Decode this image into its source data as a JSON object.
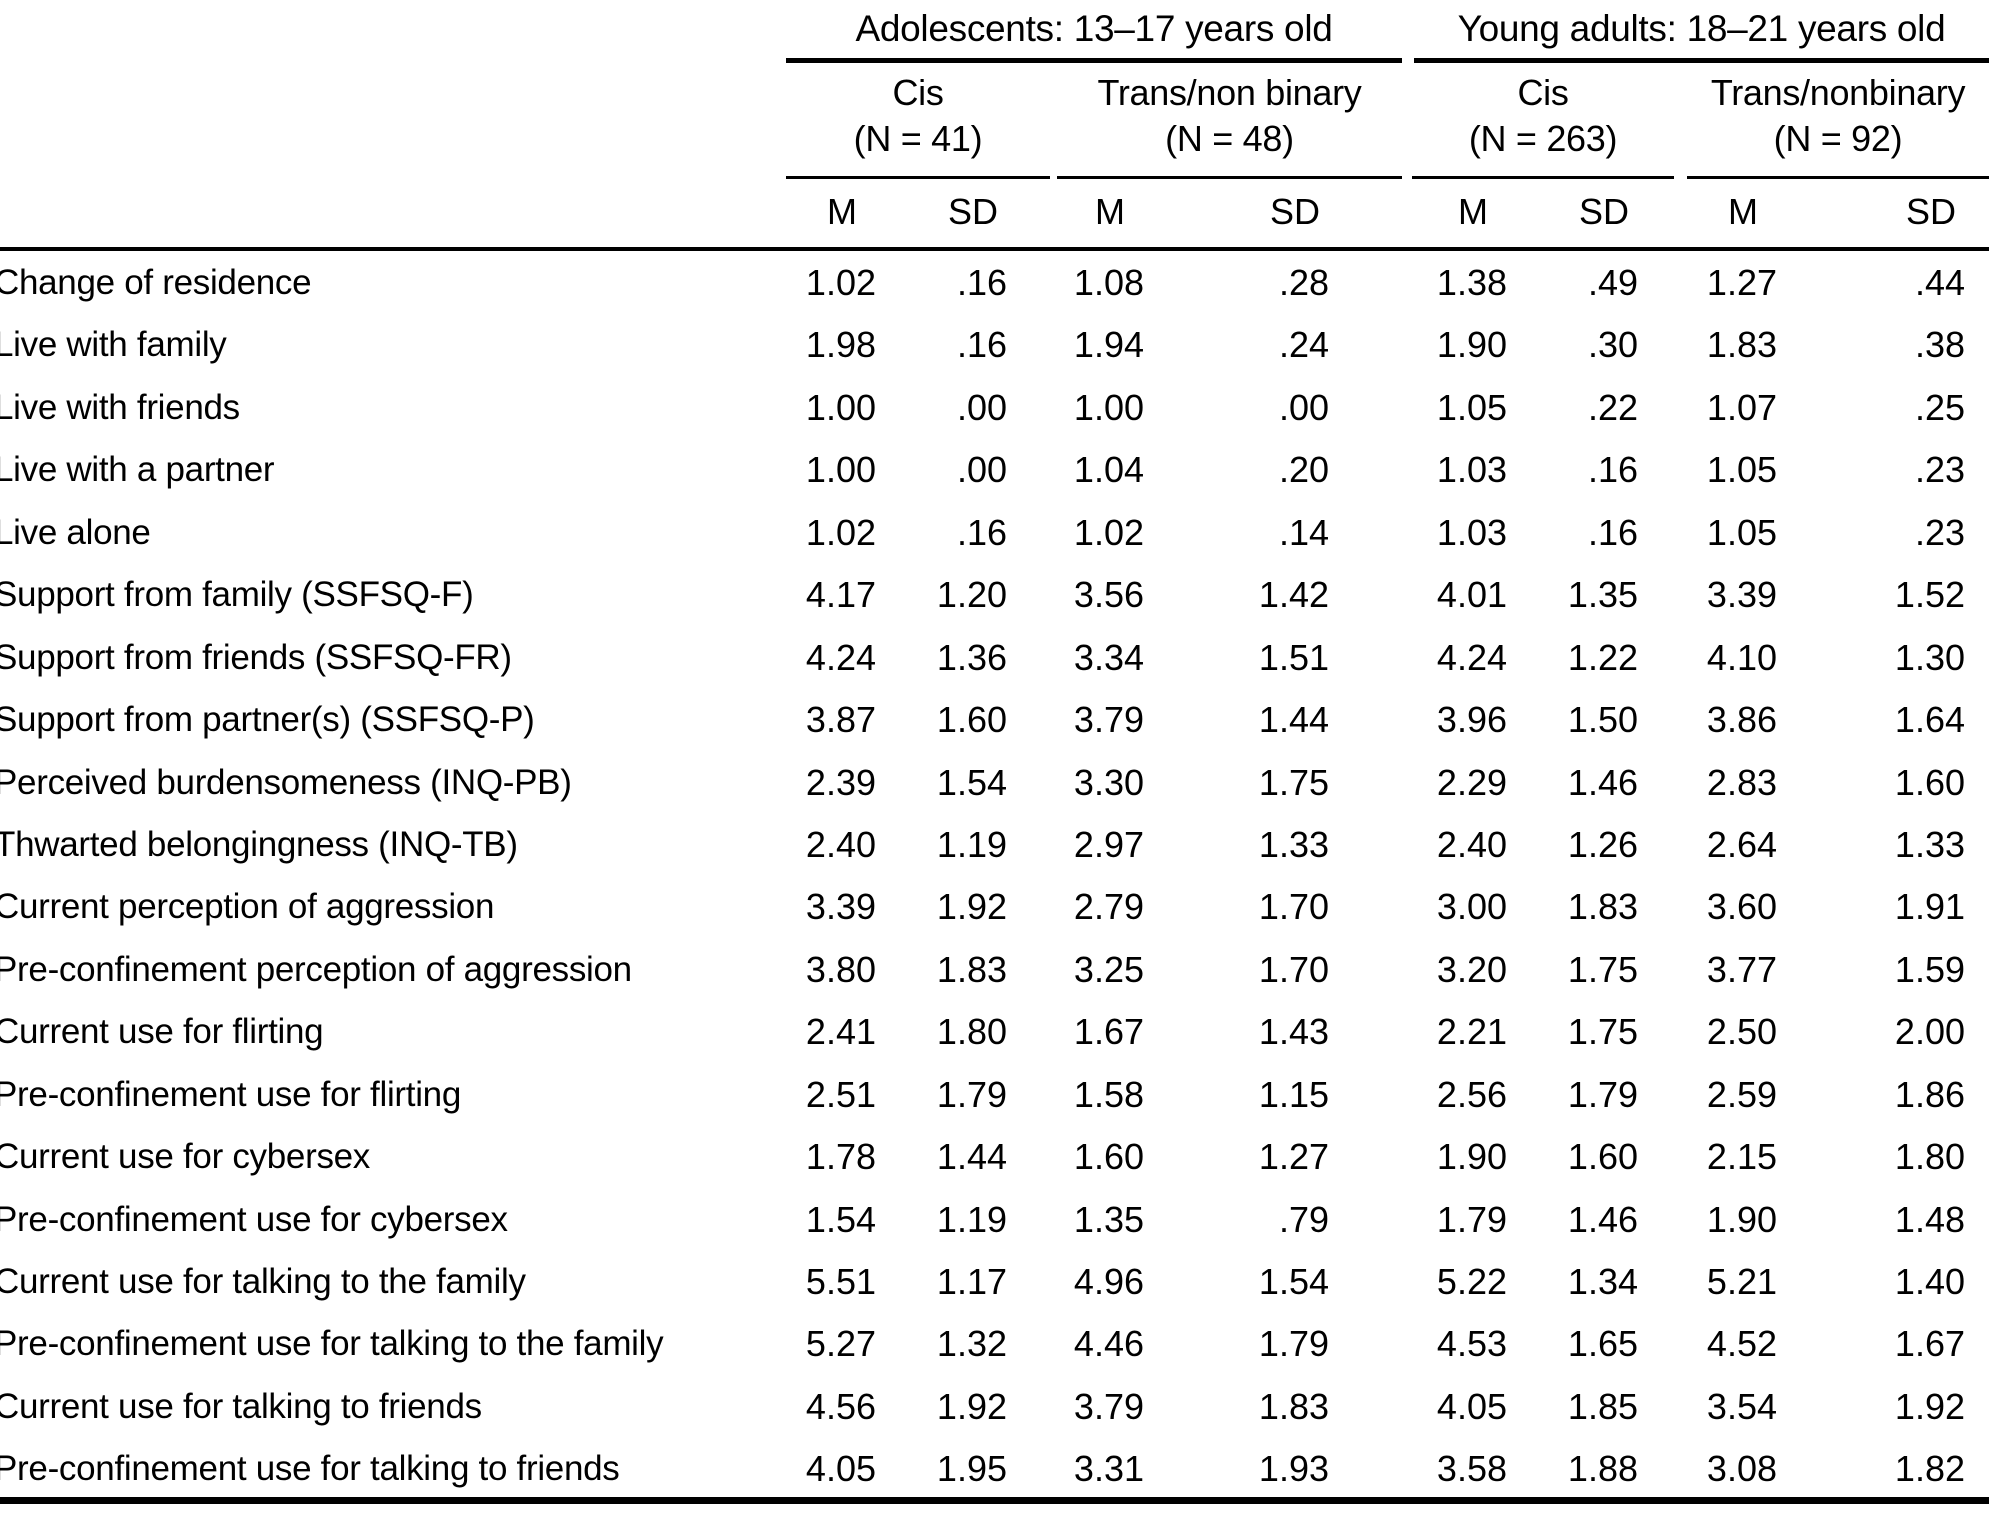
{
  "table": {
    "groups": [
      {
        "label": "Adolescents: 13–17 years old",
        "subgroups": [
          {
            "label": "Cis",
            "n": "(N = 41)"
          },
          {
            "label": "Trans/non binary",
            "n": "(N = 48)"
          }
        ]
      },
      {
        "label": "Young adults: 18–21 years old",
        "subgroups": [
          {
            "label": "Cis",
            "n": "(N = 263)"
          },
          {
            "label": "Trans/nonbinary",
            "n": "(N = 92)"
          }
        ]
      }
    ],
    "measure_headers": [
      "M",
      "SD",
      "M",
      "SD",
      "M",
      "SD",
      "M",
      "SD"
    ],
    "rows": [
      {
        "label": "Change of residence",
        "values": [
          "1.02",
          ".16",
          "1.08",
          ".28",
          "1.38",
          ".49",
          "1.27",
          ".44"
        ]
      },
      {
        "label": "Live with family",
        "values": [
          "1.98",
          ".16",
          "1.94",
          ".24",
          "1.90",
          ".30",
          "1.83",
          ".38"
        ]
      },
      {
        "label": "Live with friends",
        "values": [
          "1.00",
          ".00",
          "1.00",
          ".00",
          "1.05",
          ".22",
          "1.07",
          ".25"
        ]
      },
      {
        "label": "Live with a partner",
        "values": [
          "1.00",
          ".00",
          "1.04",
          ".20",
          "1.03",
          ".16",
          "1.05",
          ".23"
        ]
      },
      {
        "label": "Live alone",
        "values": [
          "1.02",
          ".16",
          "1.02",
          ".14",
          "1.03",
          ".16",
          "1.05",
          ".23"
        ]
      },
      {
        "label": "Support from family (SSFSQ-F)",
        "values": [
          "4.17",
          "1.20",
          "3.56",
          "1.42",
          "4.01",
          "1.35",
          "3.39",
          "1.52"
        ]
      },
      {
        "label": "Support from friends (SSFSQ-FR)",
        "values": [
          "4.24",
          "1.36",
          "3.34",
          "1.51",
          "4.24",
          "1.22",
          "4.10",
          "1.30"
        ]
      },
      {
        "label": "Support from partner(s) (SSFSQ-P)",
        "values": [
          "3.87",
          "1.60",
          "3.79",
          "1.44",
          "3.96",
          "1.50",
          "3.86",
          "1.64"
        ]
      },
      {
        "label": "Perceived burdensomeness (INQ-PB)",
        "values": [
          "2.39",
          "1.54",
          "3.30",
          "1.75",
          "2.29",
          "1.46",
          "2.83",
          "1.60"
        ]
      },
      {
        "label": "Thwarted belongingness (INQ-TB)",
        "values": [
          "2.40",
          "1.19",
          "2.97",
          "1.33",
          "2.40",
          "1.26",
          "2.64",
          "1.33"
        ]
      },
      {
        "label": "Current perception of aggression",
        "values": [
          "3.39",
          "1.92",
          "2.79",
          "1.70",
          "3.00",
          "1.83",
          "3.60",
          "1.91"
        ]
      },
      {
        "label": "Pre-confinement perception of aggression",
        "values": [
          "3.80",
          "1.83",
          "3.25",
          "1.70",
          "3.20",
          "1.75",
          "3.77",
          "1.59"
        ]
      },
      {
        "label": "Current use for flirting",
        "values": [
          "2.41",
          "1.80",
          "1.67",
          "1.43",
          "2.21",
          "1.75",
          "2.50",
          "2.00"
        ]
      },
      {
        "label": "Pre-confinement use for flirting",
        "values": [
          "2.51",
          "1.79",
          "1.58",
          "1.15",
          "2.56",
          "1.79",
          "2.59",
          "1.86"
        ]
      },
      {
        "label": "Current use for cybersex",
        "values": [
          "1.78",
          "1.44",
          "1.60",
          "1.27",
          "1.90",
          "1.60",
          "2.15",
          "1.80"
        ]
      },
      {
        "label": "Pre-confinement use for cybersex",
        "values": [
          "1.54",
          "1.19",
          "1.35",
          ".79",
          "1.79",
          "1.46",
          "1.90",
          "1.48"
        ]
      },
      {
        "label": "Current use for talking to the family",
        "values": [
          "5.51",
          "1.17",
          "4.96",
          "1.54",
          "5.22",
          "1.34",
          "5.21",
          "1.40"
        ]
      },
      {
        "label": "Pre-confinement use for talking to the family",
        "values": [
          "5.27",
          "1.32",
          "4.46",
          "1.79",
          "4.53",
          "1.65",
          "4.52",
          "1.67"
        ]
      },
      {
        "label": "Current use for talking to friends",
        "values": [
          "4.56",
          "1.92",
          "3.79",
          "1.83",
          "4.05",
          "1.85",
          "3.54",
          "1.92"
        ]
      },
      {
        "label": "Pre-confinement use for talking to friends",
        "values": [
          "4.05",
          "1.95",
          "3.31",
          "1.93",
          "3.58",
          "1.88",
          "3.08",
          "1.82"
        ]
      }
    ]
  }
}
